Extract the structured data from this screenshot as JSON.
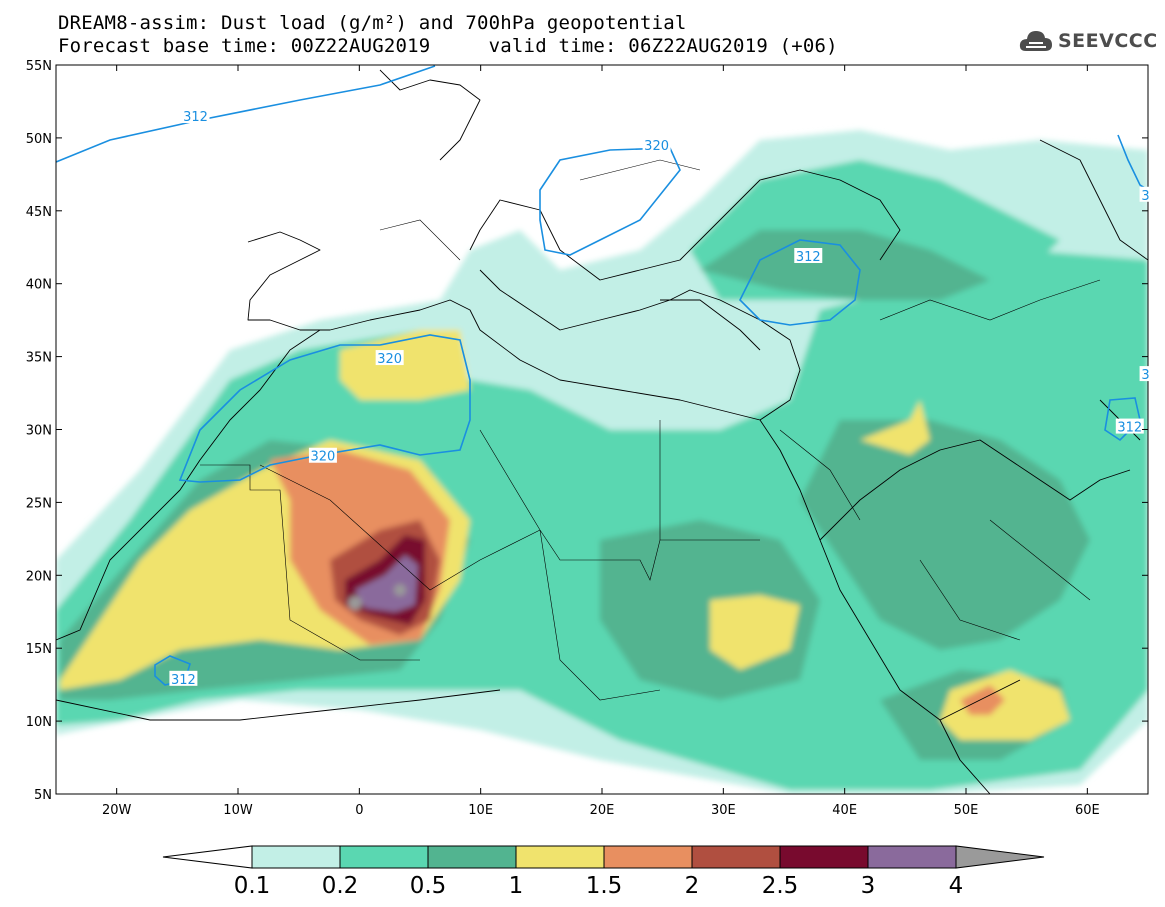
{
  "header": {
    "line1": "DREAM8-assim: Dust load (g/m²) and 700hPa geopotential",
    "line2": "Forecast base time: 00Z22AUG2019     valid time: 06Z22AUG2019 (+06)"
  },
  "logo": {
    "text": "SEEVCCC",
    "icon": "cloud-icon"
  },
  "axes": {
    "lat_labels": [
      "55N",
      "50N",
      "45N",
      "40N",
      "35N",
      "30N",
      "25N",
      "20N",
      "15N",
      "10N",
      "5N"
    ],
    "lat_values": [
      55,
      50,
      45,
      40,
      35,
      30,
      25,
      20,
      15,
      10,
      5
    ],
    "lon_labels": [
      "20W",
      "10W",
      "0",
      "10E",
      "20E",
      "30E",
      "40E",
      "50E",
      "60E"
    ],
    "lon_values": [
      -20,
      -10,
      0,
      10,
      20,
      30,
      40,
      50,
      60
    ],
    "lon_range": [
      -25,
      65
    ],
    "lat_range": [
      5,
      55
    ]
  },
  "contour_labels": [
    {
      "text": "312",
      "lon": -13.5,
      "lat": 51.5
    },
    {
      "text": "320",
      "lon": 24.5,
      "lat": 49.5
    },
    {
      "text": "312",
      "lon": 37,
      "lat": 41.9
    },
    {
      "text": "320",
      "lon": 2.5,
      "lat": 34.9
    },
    {
      "text": "320",
      "lon": -3,
      "lat": 28.2
    },
    {
      "text": "312",
      "lon": 63.5,
      "lat": 30.2
    },
    {
      "text": "312",
      "lon": -14.5,
      "lat": 12.9
    },
    {
      "text": "3",
      "lon": 64.8,
      "lat": 46.1
    },
    {
      "text": "3",
      "lon": 64.8,
      "lat": 33.8
    }
  ],
  "colorbar": {
    "labels": [
      "0.1",
      "0.2",
      "0.5",
      "1",
      "1.5",
      "2",
      "2.5",
      "3",
      "4"
    ],
    "colors": [
      "#c2efe6",
      "#5ad7b1",
      "#52b490",
      "#f0e36d",
      "#e88f60",
      "#b04f40",
      "#780a2e",
      "#8a6a9c"
    ],
    "low_color": "#ffffff",
    "high_color": "#9a9a9a"
  },
  "palette": {
    "c1": "#c2efe6",
    "c2": "#5ad7b1",
    "c3": "#52b490",
    "c4": "#f0e36d",
    "c5": "#e88f60",
    "c6": "#b04f40",
    "c7": "#780a2e",
    "c8": "#8a6a9c",
    "c9": "#9a9a9a",
    "contour": "#1a8fe0"
  }
}
